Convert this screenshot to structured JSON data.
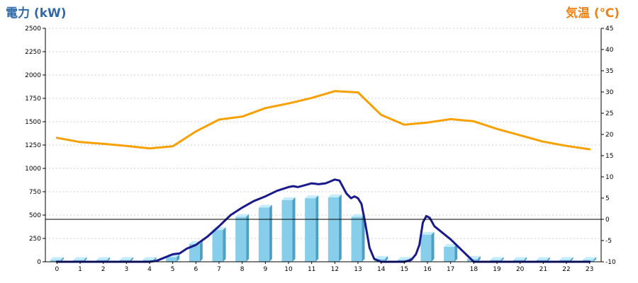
{
  "chart_data": {
    "type": "bar",
    "left_axis_title": "電力 (kW)",
    "right_axis_title": "気温 (℃)",
    "categories": [
      "0",
      "1",
      "2",
      "3",
      "4",
      "5",
      "6",
      "7",
      "8",
      "9",
      "10",
      "11",
      "12",
      "13",
      "14",
      "15",
      "16",
      "17",
      "18",
      "19",
      "20",
      "21",
      "22",
      "23"
    ],
    "ylim_left": [
      0,
      2500
    ],
    "yticks_left": [
      "0",
      "250",
      "500",
      "750",
      "1000",
      "1250",
      "1500",
      "1750",
      "2000",
      "2250",
      "2500"
    ],
    "ylim_right": [
      -10,
      45
    ],
    "yticks_right": [
      "-10",
      "-5",
      "0",
      "5",
      "10",
      "15",
      "20",
      "25",
      "30",
      "35",
      "40",
      "45"
    ],
    "grid": true,
    "reference_line_right_axis": 0,
    "series": [
      {
        "kind": "bar",
        "axis": "left",
        "color": "#87ceeb",
        "values": [
          20,
          20,
          20,
          20,
          20,
          50,
          190,
          340,
          480,
          580,
          660,
          680,
          690,
          480,
          30,
          20,
          290,
          160,
          30,
          20,
          20,
          20,
          20,
          20
        ]
      },
      {
        "kind": "line",
        "axis": "left",
        "color": "#1a1a8c",
        "x": [
          0,
          1,
          2,
          3,
          4,
          4.3,
          4.6,
          5,
          5.3,
          5.6,
          6,
          6.5,
          7,
          7.5,
          8,
          8.5,
          9,
          9.5,
          10,
          10.2,
          10.4,
          10.7,
          11,
          11.3,
          11.6,
          11.8,
          12,
          12.2,
          12.5,
          12.7,
          12.85,
          13,
          13.15,
          13.3,
          13.5,
          13.7,
          14,
          15,
          15.3,
          15.5,
          15.65,
          15.8,
          15.95,
          16.1,
          16.3,
          16.5,
          17,
          17.5,
          18,
          19,
          20,
          21,
          22,
          23
        ],
        "y": [
          0,
          0,
          0,
          0,
          0,
          10,
          40,
          80,
          90,
          140,
          180,
          270,
          380,
          500,
          580,
          650,
          700,
          760,
          800,
          810,
          800,
          820,
          840,
          830,
          840,
          860,
          880,
          870,
          730,
          680,
          700,
          680,
          620,
          430,
          150,
          30,
          0,
          0,
          20,
          80,
          180,
          420,
          490,
          470,
          380,
          340,
          240,
          120,
          0,
          0,
          0,
          0,
          0,
          0
        ]
      },
      {
        "kind": "line",
        "axis": "right",
        "color": "#f7a000",
        "x": [
          0,
          1,
          2,
          3,
          4,
          5,
          6,
          7,
          8,
          9,
          10,
          11,
          12,
          13,
          14,
          15,
          16,
          17,
          18,
          19,
          20,
          21,
          22,
          23
        ],
        "y": [
          19.2,
          18.2,
          17.8,
          17.3,
          16.7,
          17.2,
          20.7,
          23.5,
          24.2,
          26.2,
          27.3,
          28.6,
          30.2,
          29.9,
          24.6,
          22.3,
          22.8,
          23.6,
          23.1,
          21.3,
          19.8,
          18.3,
          17.3,
          16.5
        ]
      }
    ]
  }
}
